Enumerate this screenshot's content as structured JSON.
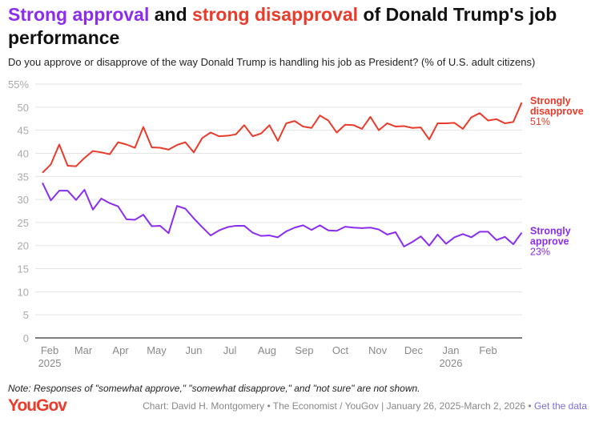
{
  "title": {
    "part1": "Strong approval",
    "part2": " and ",
    "part3": "strong disapproval",
    "part4": " of Donald Trump's job performance"
  },
  "subtitle": "Do you approve or disapprove of the way Donald Trump is handling his job as President? (% of U.S. adult citizens)",
  "note": "Note: Responses of \"somewhat approve,\" \"somewhat disapprove,\" and \"not sure\" are not shown.",
  "logo": "YouGov",
  "credit": {
    "text": "Chart: David H. Montgomery • The Economist / YouGov | January 26, 2025-March 2, 2026 • ",
    "link": "Get the data"
  },
  "colors": {
    "approve": "#8b2cf0",
    "disapprove": "#ea3a2a"
  },
  "chart_data": {
    "type": "line",
    "x_unit": "weeks since January 26, 2025",
    "ylim": [
      0,
      55
    ],
    "yticks": [
      0,
      5,
      10,
      15,
      20,
      25,
      30,
      35,
      40,
      45,
      50,
      55
    ],
    "ytick_labels": [
      "0",
      "5",
      "10",
      "15",
      "20",
      "25",
      "30",
      "35",
      "40",
      "45",
      "50",
      "55%"
    ],
    "xticks": [
      {
        "week": 0.86,
        "label": "Feb",
        "year": "2025"
      },
      {
        "week": 4.86,
        "label": "Mar"
      },
      {
        "week": 9.29,
        "label": "Apr"
      },
      {
        "week": 13.57,
        "label": "May"
      },
      {
        "week": 18.0,
        "label": "Jun"
      },
      {
        "week": 22.29,
        "label": "Jul"
      },
      {
        "week": 26.71,
        "label": "Aug"
      },
      {
        "week": 31.14,
        "label": "Sep"
      },
      {
        "week": 35.43,
        "label": "Oct"
      },
      {
        "week": 39.86,
        "label": "Nov"
      },
      {
        "week": 44.14,
        "label": "Dec"
      },
      {
        "week": 48.57,
        "label": "Jan",
        "year": "2026"
      },
      {
        "week": 53.0,
        "label": "Feb"
      }
    ],
    "series": [
      {
        "name": "Strongly disapprove",
        "label1": "Strongly",
        "label2": "disapprove",
        "last_label": "51%",
        "color_key": "disapprove",
        "values": [
          35.8,
          37.6,
          41.9,
          37.3,
          37.2,
          39.0,
          40.5,
          40.2,
          39.8,
          42.4,
          41.9,
          41.2,
          45.7,
          41.3,
          41.2,
          40.8,
          41.8,
          42.4,
          40.2,
          43.3,
          44.5,
          43.7,
          43.8,
          44.1,
          46.1,
          43.7,
          44.3,
          46.1,
          42.7,
          46.5,
          47.0,
          45.8,
          45.5,
          48.2,
          47.1,
          44.5,
          46.2,
          46.1,
          45.3,
          47.9,
          45.0,
          46.5,
          45.8,
          45.9,
          45.5,
          45.6,
          43.0,
          46.5,
          46.5,
          46.6,
          45.3,
          47.8,
          48.7,
          47.1,
          47.4,
          46.5,
          46.8,
          51.0
        ]
      },
      {
        "name": "Strongly approve",
        "label1": "Strongly",
        "label2": "approve",
        "last_label": "23%",
        "color_key": "approve",
        "values": [
          33.6,
          29.8,
          31.9,
          31.9,
          29.9,
          32.1,
          27.8,
          30.2,
          29.2,
          28.5,
          25.7,
          25.6,
          26.7,
          24.2,
          24.3,
          22.7,
          28.6,
          28.0,
          25.9,
          24.0,
          22.2,
          23.3,
          24.0,
          24.3,
          24.3,
          22.8,
          22.1,
          22.2,
          21.8,
          23.1,
          23.9,
          24.4,
          23.4,
          24.4,
          23.3,
          23.2,
          24.1,
          23.9,
          23.8,
          23.9,
          23.5,
          22.4,
          22.9,
          19.8,
          20.8,
          22.0,
          20.0,
          22.4,
          20.4,
          21.8,
          22.5,
          21.8,
          23.0,
          23.0,
          21.2,
          21.9,
          20.3,
          22.8
        ]
      }
    ]
  }
}
